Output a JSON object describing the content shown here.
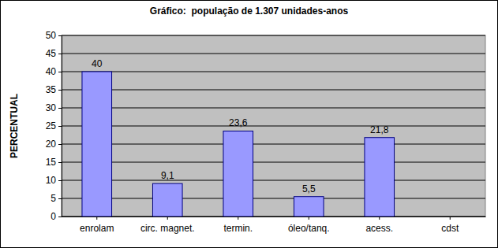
{
  "chart_data": {
    "type": "bar",
    "title": "Gráfico:  população de 1.307 unidades-anos",
    "ylabel": "PERCENTUAL",
    "categories": [
      "enrolam",
      "circ. magnet.",
      "termin.",
      "óleo/tanq.",
      "acess.",
      "cdst"
    ],
    "values": [
      40,
      9.1,
      23.6,
      5.5,
      21.8,
      null
    ],
    "value_labels": [
      "40",
      "9,1",
      "23,6",
      "5,5",
      "21,8",
      null
    ],
    "color": "#9999ff",
    "ylim": [
      0,
      50
    ],
    "yticks": [
      0,
      5,
      10,
      15,
      20,
      25,
      30,
      35,
      40,
      45,
      50
    ],
    "grid": true,
    "data_labels": true
  }
}
